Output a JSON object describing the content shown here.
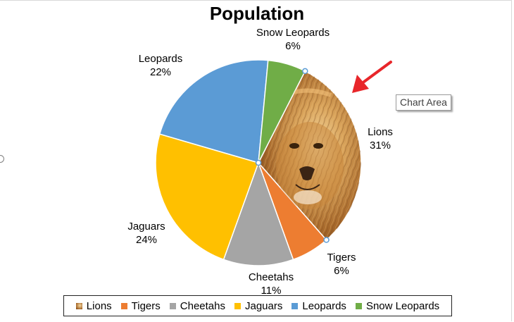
{
  "chart_data": {
    "type": "pie",
    "title": "Population",
    "categories": [
      "Lions",
      "Tigers",
      "Cheetahs",
      "Jaguars",
      "Leopards",
      "Snow Leopards"
    ],
    "values": [
      31,
      6,
      11,
      24,
      22,
      6
    ],
    "labels": [
      "31%",
      "6%",
      "11%",
      "24%",
      "22%",
      "6%"
    ],
    "colors": [
      "#c98a3e",
      "#ed7d31",
      "#a5a5a5",
      "#ffc000",
      "#5b9bd5",
      "#70ad47"
    ],
    "legend_position": "bottom",
    "selected_slice": "Lions"
  },
  "tooltip": {
    "text": "Chart Area"
  },
  "colors": {
    "arrow": "#e8262a",
    "selection_handle": "#5b9bd5"
  }
}
